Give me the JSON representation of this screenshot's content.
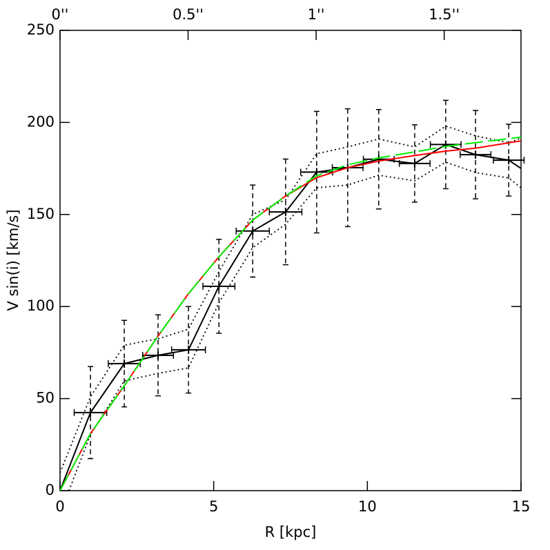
{
  "chart_data": {
    "type": "line",
    "xlabel": "R [kpc]",
    "ylabel": "V sin(i) [km/s]",
    "xlim": [
      0,
      15
    ],
    "xticks": [
      0,
      5,
      10,
      15
    ],
    "ylim": [
      0,
      250
    ],
    "yticks": [
      0,
      50,
      100,
      150,
      200,
      250
    ],
    "x2lim": [
      0,
      1.8
    ],
    "x2ticks": [
      {
        "value": 0,
        "label": "0''"
      },
      {
        "value": 0.5,
        "label": "0.5''"
      },
      {
        "value": 1,
        "label": "1''"
      },
      {
        "value": 1.5,
        "label": "1.5''"
      }
    ],
    "series": [
      {
        "style": "errorbar",
        "color": "#000000",
        "x": [
          0.99,
          2.09,
          3.19,
          4.18,
          5.17,
          6.27,
          7.34,
          8.35,
          9.36,
          10.37,
          11.54,
          12.55,
          13.52,
          14.6
        ],
        "values": [
          42.4,
          69,
          73.5,
          76.5,
          111,
          141,
          151.4,
          173,
          175.4,
          180,
          177.7,
          188,
          182.5,
          179.5
        ],
        "xerr": [
          0.53,
          0.52,
          0.5,
          0.55,
          0.52,
          0.54,
          0.53,
          0.52,
          0.5,
          0.5,
          0.5,
          0.5,
          0.5,
          0.5
        ],
        "yerr": [
          25,
          23.5,
          22,
          23.5,
          25.5,
          25,
          28.7,
          33,
          32,
          27,
          21,
          24,
          24,
          19.5
        ]
      },
      {
        "style": "solid",
        "color": "#000000",
        "x": [
          0,
          0.99,
          2.09,
          3.19,
          4.18,
          5.17,
          6.27,
          7.34,
          8.35,
          9.36,
          10.37,
          11.54,
          12.55,
          13.52,
          14.6,
          15
        ],
        "values": [
          0,
          42.4,
          69,
          73.5,
          76.5,
          111,
          141,
          151.4,
          173,
          175.4,
          180,
          177.7,
          188,
          182.5,
          179.5,
          175
        ]
      },
      {
        "style": "dotted",
        "color": "#000000",
        "x": [
          0,
          0.99,
          2.09,
          3.19,
          4.18,
          5.17,
          6.27,
          7.34,
          8.35,
          9.36,
          10.37,
          11.54,
          12.55,
          13.52,
          14.6,
          15
        ],
        "values": [
          9.7,
          51,
          79,
          82.5,
          87.7,
          119,
          150,
          158,
          183,
          186.7,
          191,
          186.7,
          198,
          192.7,
          189,
          191.5
        ]
      },
      {
        "style": "dotted",
        "color": "#000000",
        "x": [
          0.29,
          0.99,
          2.09,
          3.19,
          4.18,
          5.17,
          6.27,
          7.34,
          8.35,
          9.36,
          10.37,
          11.54,
          12.55,
          13.52,
          14.6,
          15
        ],
        "values": [
          0,
          30.4,
          59.6,
          63.7,
          66.7,
          102,
          132,
          144.7,
          164.5,
          166,
          171.3,
          168.3,
          178.4,
          172.8,
          169.8,
          164.5
        ]
      },
      {
        "style": "solid",
        "color": "#ff0000",
        "x": [
          0,
          0.99,
          2.09,
          3.19,
          4.18,
          5.17,
          6.27,
          7.34,
          8.35,
          9.36,
          10.37,
          11.54,
          12.55,
          13.52,
          15
        ],
        "values": [
          0,
          31,
          57,
          84,
          107,
          127,
          147,
          160,
          170,
          175.4,
          179,
          182,
          184.4,
          186,
          190
        ]
      },
      {
        "style": "dashed",
        "color": "#00ee00",
        "x": [
          0,
          0.99,
          2.09,
          3.19,
          4.18,
          5.17,
          6.27,
          7.34,
          8.35,
          9.36,
          10.37,
          11.54,
          12.55,
          13.52,
          15
        ],
        "values": [
          0,
          31,
          57,
          84,
          107,
          127,
          147,
          160,
          171,
          177,
          180.7,
          184,
          187,
          189,
          192
        ]
      }
    ]
  }
}
